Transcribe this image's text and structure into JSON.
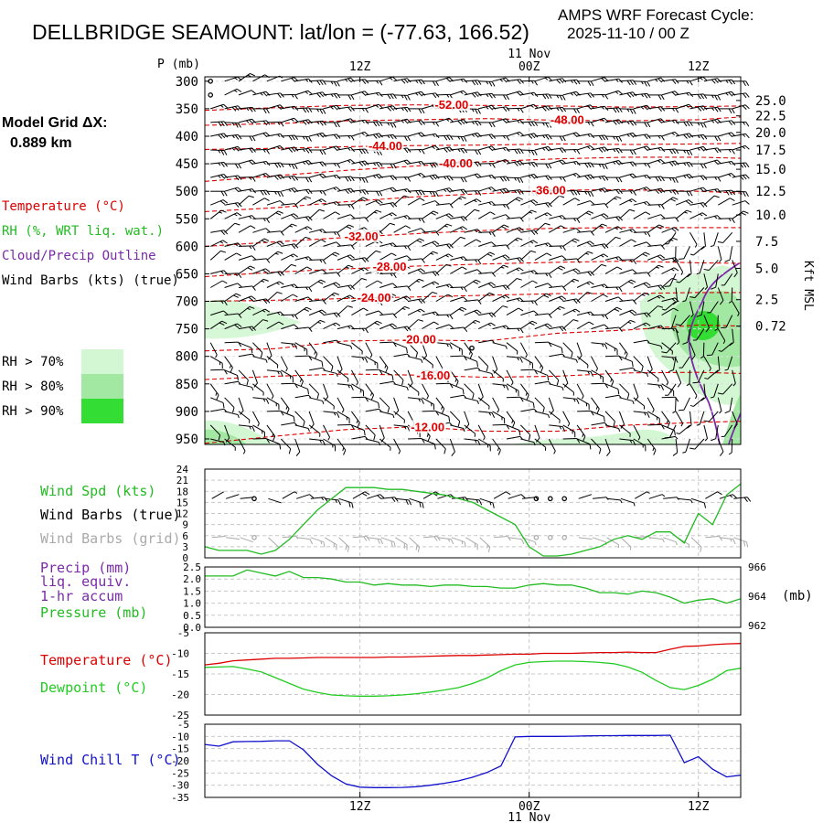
{
  "header": {
    "title": "DELLBRIDGE SEAMOUNT:  lat/lon = (-77.63, 166.52)",
    "cycle_line1": "AMPS WRF Forecast Cycle:",
    "cycle_line2": "2025-11-10 / 00  Z",
    "grid_label": "Model Grid ΔX:",
    "grid_value": "0.889 km"
  },
  "colors": {
    "temperature": "#dd0000",
    "rh": "#22bb22",
    "cloud": "#7a2aa8",
    "wind": "#000000",
    "wind_grid": "#aaaaaa",
    "precip": "#7a2aa8",
    "pressure": "#22bb22",
    "dewpoint": "#22cc22",
    "windchill": "#1010cc",
    "rh70": "#d2f7d2",
    "rh80": "#a2e8a2",
    "rh90": "#33dd33",
    "grid": "#c8c8c8"
  },
  "time_axis": {
    "top_date": "11 Nov",
    "bottom_date": "11 Nov",
    "ticks": [
      {
        "hour": 6,
        "label": "12Z"
      },
      {
        "hour": 18,
        "label": "00Z"
      },
      {
        "hour": 30,
        "label": "12Z"
      }
    ]
  },
  "chart_data": [
    {
      "name": "cross-section",
      "type": "heatmap",
      "x_hours": [
        -5,
        33
      ],
      "ylabel": "P (mb)",
      "ylim": [
        960,
        292
      ],
      "y_ticks": [
        300,
        350,
        400,
        450,
        500,
        550,
        600,
        650,
        700,
        750,
        800,
        850,
        900,
        950
      ],
      "right_axis_label": "Kft MSL",
      "right_ticks": [
        {
          "p": 335,
          "label": "25.0"
        },
        {
          "p": 363,
          "label": "22.5"
        },
        {
          "p": 393,
          "label": "20.0"
        },
        {
          "p": 425,
          "label": "17.5"
        },
        {
          "p": 460,
          "label": "15.0"
        },
        {
          "p": 500,
          "label": "12.5"
        },
        {
          "p": 543,
          "label": "10.0"
        },
        {
          "p": 591,
          "label": "7.5"
        },
        {
          "p": 640,
          "label": "5.0"
        },
        {
          "p": 697,
          "label": "2.5"
        },
        {
          "p": 745,
          "label": "0.72"
        }
      ],
      "legend": {
        "temperature": "Temperature (°C)",
        "rh": "RH (%, WRT liq. wat.)",
        "cloud": "Cloud/Precip Outline",
        "wind": "Wind Barbs (kts) (true)",
        "rh_levels": [
          "RH > 70%",
          "RH > 80%",
          "RH > 90%"
        ]
      },
      "isotherms": [
        {
          "value": -52,
          "label": "-52.00",
          "label_hour": 12.5,
          "p": [
            353,
            348,
            344,
            343,
            344,
            345,
            347,
            346,
            345
          ]
        },
        {
          "value": -48,
          "label": "-48.00",
          "label_hour": 20.7,
          "p": [
            380,
            377,
            372,
            370,
            368,
            371,
            372,
            370,
            365
          ]
        },
        {
          "value": -44,
          "label": "-44.00",
          "label_hour": 7.8,
          "p": [
            424,
            422,
            419,
            417,
            416,
            414,
            415,
            414,
            413
          ]
        },
        {
          "value": -40,
          "label": "-40.00",
          "label_hour": 12.8,
          "p": [
            482,
            472,
            462,
            454,
            446,
            441,
            438,
            438,
            440
          ]
        },
        {
          "value": -36,
          "label": "-36.00",
          "label_hour": 19.4,
          "p": [
            537,
            530,
            519,
            510,
            504,
            498,
            497,
            500,
            503
          ]
        },
        {
          "value": -32,
          "label": "-32.00",
          "label_hour": 6.1,
          "p": [
            600,
            592,
            584,
            577,
            571,
            567,
            566,
            566,
            566
          ]
        },
        {
          "value": -28,
          "label": "-28.00",
          "label_hour": 8.1,
          "p": [
            655,
            647,
            641,
            636,
            632,
            629,
            627,
            630,
            631
          ]
        },
        {
          "value": -24,
          "label": "-24.00",
          "label_hour": 7.0,
          "p": [
            700,
            698,
            695,
            692,
            689,
            686,
            686,
            684,
            684
          ]
        },
        {
          "value": -20,
          "label": "-20.00",
          "label_hour": 10.2,
          "p": [
            790,
            786,
            772,
            770,
            772,
            758,
            752,
            743,
            745
          ]
        },
        {
          "value": -16,
          "label": "-16.00",
          "label_hour": 11.2,
          "p": [
            842,
            836,
            832,
            834,
            838,
            836,
            830,
            829,
            831
          ]
        },
        {
          "value": -12,
          "label": "-12.00",
          "label_hour": 10.8,
          "p": [
            958,
            945,
            933,
            928,
            936,
            936,
            925,
            920,
            918
          ]
        }
      ],
      "barb_levels": [
        300,
        325,
        350,
        375,
        400,
        425,
        450,
        475,
        500,
        525,
        550,
        575,
        600,
        625,
        650,
        675,
        700,
        725,
        750,
        775,
        800,
        825,
        850,
        875,
        900,
        925,
        950
      ]
    },
    {
      "name": "wind-speed",
      "type": "line",
      "ylim": [
        0,
        24
      ],
      "y_ticks": [
        0,
        3,
        6,
        9,
        12,
        15,
        18,
        21,
        24
      ],
      "legend": [
        "Wind Spd (kts)",
        "Wind Barbs (true)",
        "Wind Barbs (grid)"
      ],
      "x": [
        -5,
        -4,
        -3,
        -2,
        -1,
        0,
        1,
        2,
        3,
        4,
        5,
        6,
        7,
        8,
        9,
        10,
        11,
        12,
        13,
        14,
        15,
        16,
        17,
        18,
        19,
        20,
        21,
        22,
        23,
        24,
        25,
        26,
        27,
        28,
        29,
        30,
        31,
        32,
        33
      ],
      "series": [
        {
          "name": "Wind Spd (kts)",
          "values": [
            3,
            2,
            2,
            2,
            1,
            2,
            5,
            9,
            13,
            16,
            19,
            19,
            19,
            18.5,
            18.5,
            18,
            17.5,
            17,
            16,
            15,
            13,
            11,
            9,
            3,
            0.5,
            0.5,
            1,
            2,
            3,
            5,
            6,
            5,
            7,
            7,
            4,
            12,
            9,
            17,
            20
          ]
        }
      ]
    },
    {
      "name": "precip-pressure",
      "type": "line",
      "ylim": [
        0,
        2.5
      ],
      "y_ticks": [
        0.0,
        0.5,
        1.0,
        1.5,
        2.0,
        2.5
      ],
      "y_tick_labels": [
        "0.0",
        "0.5",
        "1.0",
        "1.5",
        "2.0",
        "2.5"
      ],
      "right_ylim": [
        962,
        966
      ],
      "right_ticks": [
        "966",
        "964",
        "962"
      ],
      "right_unit": "(mb)",
      "legend": [
        "Precip (mm)",
        "liq. equiv.",
        "1-hr accum",
        "Pressure (mb)"
      ],
      "x": [
        -5,
        -4,
        -3,
        -2,
        -1,
        0,
        1,
        2,
        3,
        4,
        5,
        6,
        7,
        8,
        9,
        10,
        11,
        12,
        13,
        14,
        15,
        16,
        17,
        18,
        19,
        20,
        21,
        22,
        23,
        24,
        25,
        26,
        27,
        28,
        29,
        30,
        31,
        32,
        33
      ],
      "series": [
        {
          "name": "Pressure (mb)",
          "values": [
            965.4,
            965.4,
            965.4,
            965.8,
            965.6,
            965.4,
            965.7,
            965.3,
            965.3,
            965.2,
            965.0,
            965.0,
            964.8,
            964.9,
            964.8,
            964.8,
            964.7,
            964.8,
            964.8,
            964.7,
            964.7,
            964.6,
            964.6,
            964.8,
            964.9,
            964.8,
            964.8,
            964.6,
            964.3,
            964.3,
            964.2,
            964.4,
            964.3,
            964.0,
            963.6,
            963.8,
            963.9,
            963.6,
            963.9
          ]
        }
      ]
    },
    {
      "name": "temperature-dewpoint",
      "type": "line",
      "ylim": [
        -25,
        -5
      ],
      "y_ticks": [
        -25,
        -20,
        -15,
        -10,
        -5
      ],
      "legend": [
        "Temperature (°C)",
        "Dewpoint (°C)"
      ],
      "x": [
        -5,
        -4,
        -3,
        -2,
        -1,
        0,
        1,
        2,
        3,
        4,
        5,
        6,
        7,
        8,
        9,
        10,
        11,
        12,
        13,
        14,
        15,
        16,
        17,
        18,
        19,
        20,
        21,
        22,
        23,
        24,
        25,
        26,
        27,
        28,
        29,
        30,
        31,
        32,
        33
      ],
      "series": [
        {
          "name": "Temperature (°C)",
          "values": [
            -12.8,
            -12.4,
            -11.8,
            -11.6,
            -11.4,
            -11.2,
            -11.2,
            -11.1,
            -11.0,
            -11.0,
            -11.0,
            -11.0,
            -11.0,
            -10.9,
            -10.9,
            -10.8,
            -10.7,
            -10.6,
            -10.5,
            -10.5,
            -10.4,
            -10.3,
            -10.2,
            -10.2,
            -10.0,
            -10.0,
            -10.0,
            -9.9,
            -9.8,
            -9.8,
            -9.7,
            -9.8,
            -9.8,
            -9.0,
            -8.3,
            -8.2,
            -7.9,
            -7.7,
            -7.6
          ]
        },
        {
          "name": "Dewpoint (°C)",
          "values": [
            -13.4,
            -13.3,
            -13.2,
            -13.8,
            -14.5,
            -15.9,
            -17.3,
            -18.7,
            -19.5,
            -20.1,
            -20.3,
            -20.4,
            -20.4,
            -20.3,
            -20.1,
            -19.8,
            -19.4,
            -18.9,
            -18.3,
            -17.3,
            -16.0,
            -14.2,
            -12.8,
            -12.2,
            -12.0,
            -11.9,
            -11.9,
            -12.0,
            -12.2,
            -12.5,
            -13.3,
            -14.6,
            -16.6,
            -18.3,
            -18.8,
            -17.8,
            -16.3,
            -14.2,
            -13.6
          ]
        }
      ]
    },
    {
      "name": "wind-chill",
      "type": "line",
      "ylim": [
        -35,
        -5
      ],
      "y_ticks": [
        -35,
        -30,
        -25,
        -20,
        -15,
        -10,
        -5
      ],
      "legend": [
        "Wind Chill T (°C)"
      ],
      "x": [
        -5,
        -4,
        -3,
        -2,
        -1,
        0,
        1,
        2,
        3,
        4,
        5,
        6,
        7,
        8,
        9,
        10,
        11,
        12,
        13,
        14,
        15,
        16,
        17,
        18,
        19,
        20,
        21,
        22,
        23,
        24,
        25,
        26,
        27,
        28,
        29,
        30,
        31,
        32,
        33
      ],
      "series": [
        {
          "name": "Wind Chill T (°C)",
          "values": [
            -13.3,
            -14.0,
            -12.2,
            -12.1,
            -12.0,
            -11.8,
            -11.8,
            -15.5,
            -21.5,
            -26.2,
            -29.5,
            -30.8,
            -31.0,
            -31.0,
            -30.9,
            -30.6,
            -30.0,
            -29.2,
            -28.2,
            -26.7,
            -24.8,
            -22.1,
            -10.2,
            -10.0,
            -10.0,
            -10.0,
            -9.9,
            -9.8,
            -9.7,
            -9.7,
            -9.6,
            -9.6,
            -9.6,
            -9.5,
            -20.8,
            -18.3,
            -23.4,
            -26.6,
            -25.9
          ]
        }
      ]
    }
  ]
}
